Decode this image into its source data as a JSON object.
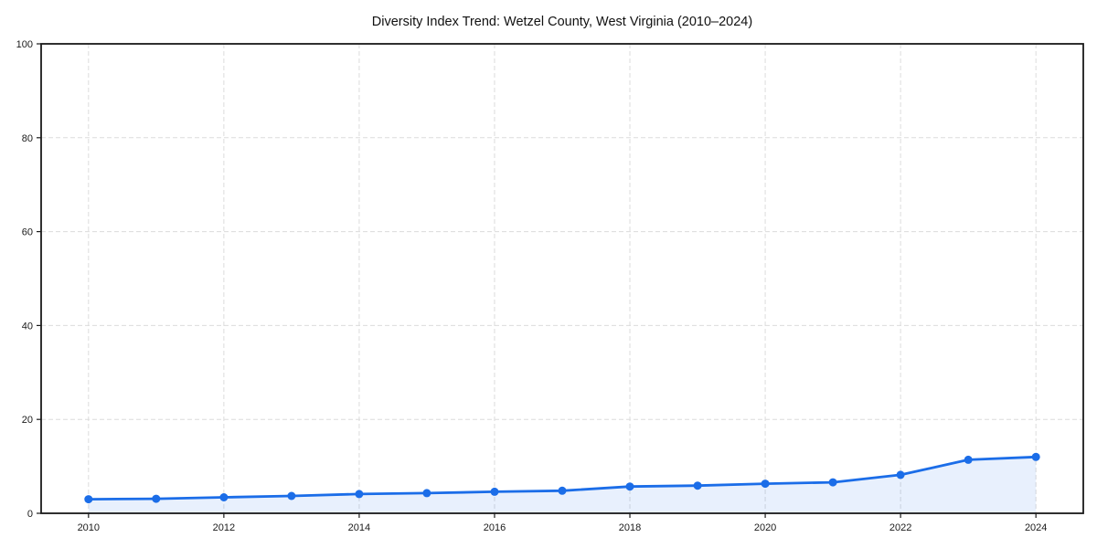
{
  "figure": {
    "background": "#ffffff"
  },
  "chart_data": {
    "type": "area",
    "title": "Diversity Index Trend: Wetzel County, West Virginia (2010–2024)",
    "x": [
      2010,
      2011,
      2012,
      2013,
      2014,
      2015,
      2016,
      2017,
      2018,
      2019,
      2020,
      2021,
      2022,
      2023,
      2024
    ],
    "series": [
      {
        "name": "Diversity Index",
        "values": [
          3.0,
          3.1,
          3.4,
          3.7,
          4.1,
          4.3,
          4.6,
          4.8,
          5.7,
          5.9,
          6.3,
          6.6,
          8.2,
          11.4,
          12.0
        ]
      }
    ],
    "xlabel": "",
    "ylabel": "",
    "xlim": [
      2009.3,
      2024.7
    ],
    "ylim": [
      0,
      100
    ],
    "x_ticks": [
      2010,
      2012,
      2014,
      2016,
      2018,
      2020,
      2022,
      2024
    ],
    "y_ticks": [
      0,
      20,
      40,
      60,
      80,
      100
    ],
    "grid": true,
    "grid_style": "dashed",
    "legend_position": "none",
    "colors": {
      "line": "#1b6de8",
      "marker": "#1b6de8",
      "fill": "#1b6de8",
      "fill_opacity": 0.1,
      "grid": "#dcdcdc",
      "spine": "#1a1a1a",
      "tick_label": "#1a1a1a",
      "title": "#111111"
    }
  }
}
